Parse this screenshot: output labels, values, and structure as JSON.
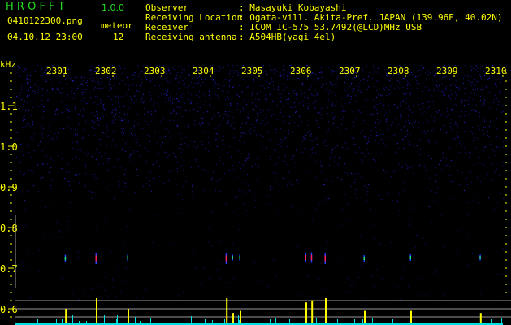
{
  "app": {
    "logo": "H R O F F T",
    "version": "1.0.0"
  },
  "file": {
    "name": "0410122300.png",
    "datetime": "04.10.12 23:00"
  },
  "meteor": {
    "label": "meteor",
    "count": "12"
  },
  "info": [
    {
      "label": "Observer",
      "value": ": Masayuki Kobayashi"
    },
    {
      "label": "Receiving Location",
      "value": ": Ogata-vill. Akita-Pref. JAPAN (139.96E, 40.02N)"
    },
    {
      "label": "Receiver",
      "value": ": ICOM IC-575 53.7492(@LCD)MHz USB"
    },
    {
      "label": "Receiving antenna",
      "value": ": A504HB(yagi 4el)"
    }
  ],
  "chart_data": {
    "type": "heatmap",
    "ylabel": "kHz",
    "y_ticks": [
      "1.1",
      "1.0",
      "0.9",
      "0.8",
      "0.7",
      "0.6"
    ],
    "x_ticks": [
      "2301",
      "2302",
      "2303",
      "2304",
      "2305",
      "2306",
      "2307",
      "2308",
      "2309",
      "2310"
    ],
    "xlim_minutes": [
      0,
      10
    ],
    "ylim_khz": [
      0.58,
      1.2
    ],
    "colors": {
      "noise": "#1a1aa0",
      "echo_core": "#ff2060",
      "echo_mid": "#20e080",
      "histogram_peak": "#ffff00",
      "histogram_base": "#00e0e0",
      "grid": "#999999"
    },
    "echoes": [
      {
        "minute": 1.02,
        "khz": 0.724,
        "strength": 0.5
      },
      {
        "minute": 1.65,
        "khz": 0.724,
        "strength": 1.0
      },
      {
        "minute": 2.3,
        "khz": 0.726,
        "strength": 0.5
      },
      {
        "minute": 4.32,
        "khz": 0.724,
        "strength": 1.0
      },
      {
        "minute": 4.45,
        "khz": 0.726,
        "strength": 0.3
      },
      {
        "minute": 4.6,
        "khz": 0.726,
        "strength": 0.4
      },
      {
        "minute": 5.95,
        "khz": 0.726,
        "strength": 0.8
      },
      {
        "minute": 6.07,
        "khz": 0.726,
        "strength": 0.9
      },
      {
        "minute": 6.35,
        "khz": 0.724,
        "strength": 1.0
      },
      {
        "minute": 7.15,
        "khz": 0.724,
        "strength": 0.4
      },
      {
        "minute": 8.1,
        "khz": 0.726,
        "strength": 0.4
      },
      {
        "minute": 9.53,
        "khz": 0.726,
        "strength": 0.3
      }
    ]
  }
}
